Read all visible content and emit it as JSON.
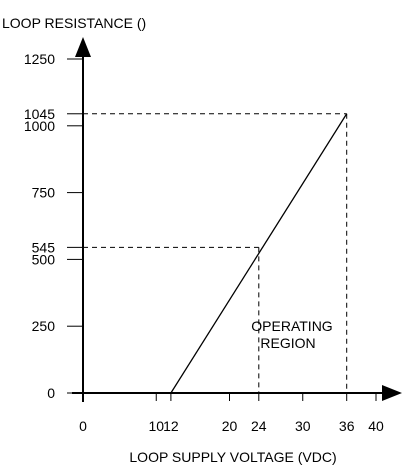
{
  "chart_data": {
    "type": "line",
    "ylabel": "LOOP RESISTANCE ()",
    "xlabel": "LOOP SUPPLY VOLTAGE (VDC)",
    "region_label": [
      "OPERATING",
      "REGION"
    ],
    "x_ticks": [
      0,
      10,
      12,
      20,
      24,
      30,
      36,
      40
    ],
    "y_ticks": [
      0,
      250,
      500,
      545,
      750,
      1000,
      1045,
      1250
    ],
    "xlim": [
      0,
      40
    ],
    "ylim": [
      0,
      1250
    ],
    "series": [
      {
        "x": [
          12,
          36
        ],
        "y": [
          0,
          1045
        ]
      }
    ],
    "reference_points": [
      {
        "x": 24,
        "y": 545
      },
      {
        "x": 36,
        "y": 1045
      }
    ],
    "grid": false
  }
}
